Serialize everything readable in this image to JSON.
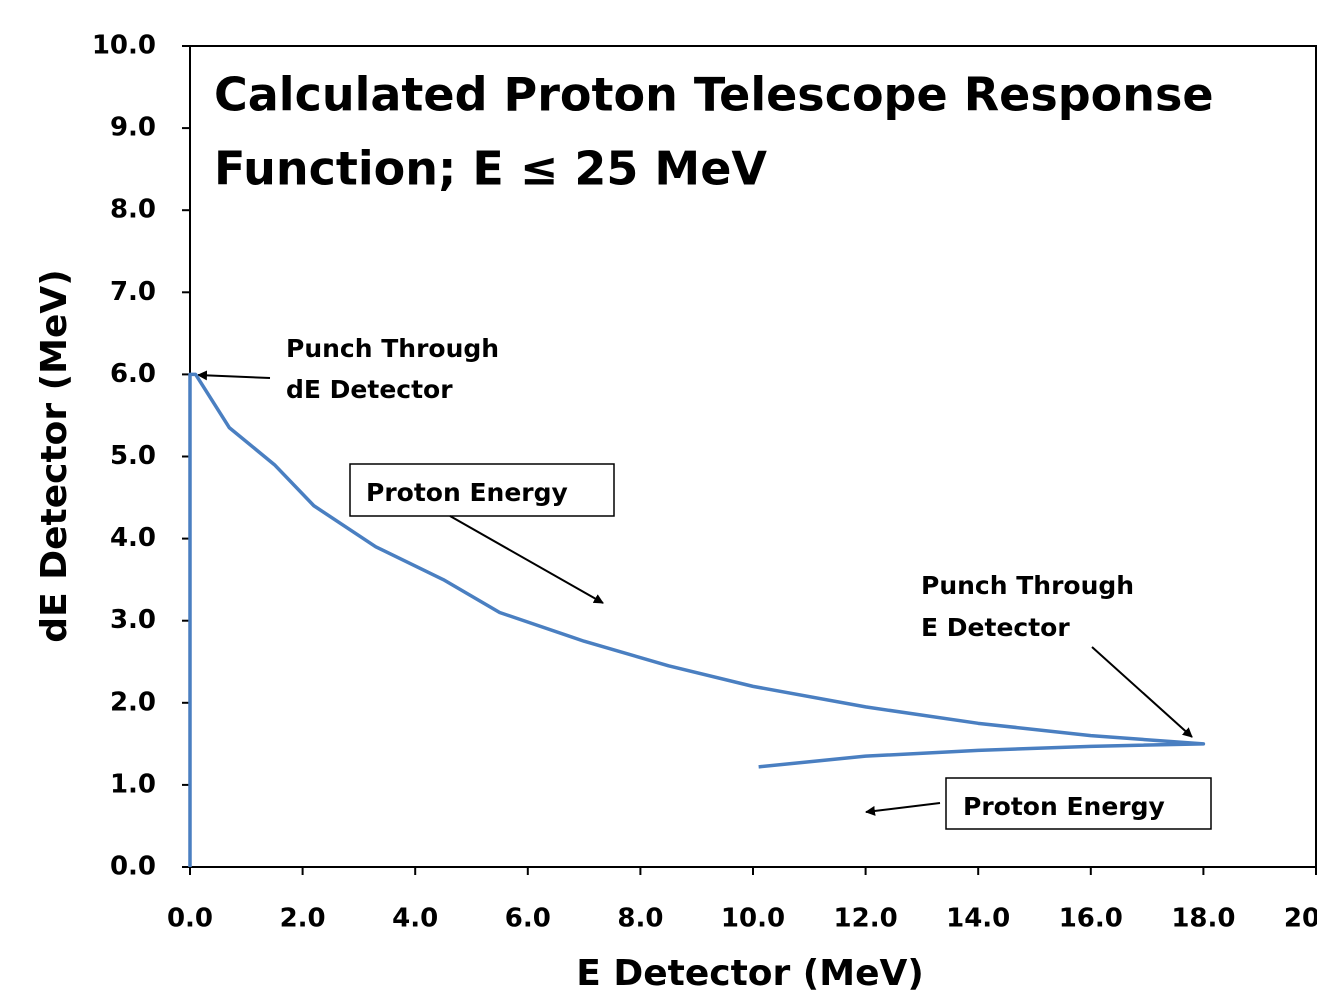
{
  "chart_data": {
    "type": "line",
    "title": [
      "Calculated Proton Telescope Response",
      "Function; E ≤ 25 MeV"
    ],
    "x_label": "E Detector (MeV)",
    "y_label": "dE Detector (MeV)",
    "xlim": [
      0,
      20
    ],
    "ylim": [
      0,
      10
    ],
    "xticks": [
      {
        "value": 0,
        "label": "0.0"
      },
      {
        "value": 2,
        "label": "2.0"
      },
      {
        "value": 4,
        "label": "4.0"
      },
      {
        "value": 6,
        "label": "6.0"
      },
      {
        "value": 8,
        "label": "8.0"
      },
      {
        "value": 10,
        "label": "10.0"
      },
      {
        "value": 12,
        "label": "12.0"
      },
      {
        "value": 14,
        "label": "14.0"
      },
      {
        "value": 16,
        "label": "16.0"
      },
      {
        "value": 18,
        "label": "18.0"
      },
      {
        "value": 20,
        "label": "20.0"
      }
    ],
    "yticks": [
      {
        "value": 0,
        "label": "0.0"
      },
      {
        "value": 1,
        "label": "1.0"
      },
      {
        "value": 2,
        "label": "2.0"
      },
      {
        "value": 3,
        "label": "3.0"
      },
      {
        "value": 4,
        "label": "4.0"
      },
      {
        "value": 5,
        "label": "5.0"
      },
      {
        "value": 6,
        "label": "6.0"
      },
      {
        "value": 7,
        "label": "7.0"
      },
      {
        "value": 8,
        "label": "8.0"
      },
      {
        "value": 9,
        "label": "9.0"
      },
      {
        "value": 10,
        "label": "10.0"
      }
    ],
    "series": [
      {
        "color": "#4a7fc1",
        "x": [
          0,
          0,
          0.1,
          0.7,
          1.5,
          2.2,
          3.3,
          4.5,
          5.5,
          7,
          8.5,
          10,
          12,
          14,
          16,
          18,
          16,
          14,
          12,
          10.1
        ],
        "values": [
          0,
          6.0,
          6.0,
          5.35,
          4.9,
          4.4,
          3.9,
          3.5,
          3.1,
          2.75,
          2.45,
          2.2,
          1.95,
          1.75,
          1.6,
          1.5,
          1.47,
          1.42,
          1.35,
          1.22
        ]
      }
    ],
    "annotations": [
      "Punch Through",
      "dE Detector",
      "Proton Energy",
      "Punch Through",
      "E Detector",
      "Proton Energy"
    ]
  }
}
